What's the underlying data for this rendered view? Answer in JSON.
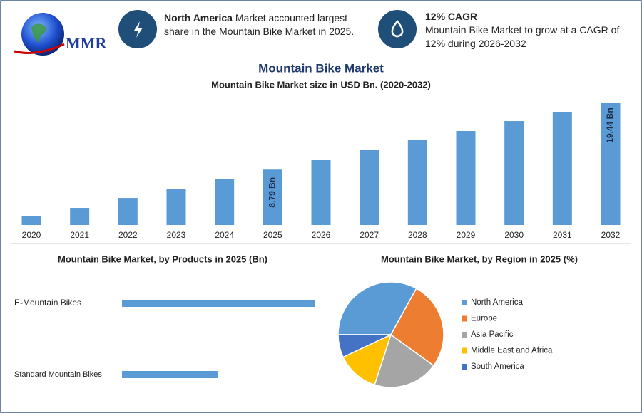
{
  "header": {
    "logo": "MMR",
    "info": [
      {
        "bold": "North America",
        "text": " Market accounted largest share in the Mountain Bike Market in 2025."
      },
      {
        "bold": "12% CAGR",
        "text": "Mountain Bike Market to grow at a CAGR of 12% during 2026-2032"
      }
    ]
  },
  "chart_data": [
    {
      "type": "bar",
      "title": "Mountain Bike Market",
      "subtitle": "Mountain Bike Market size in USD Bn. (2020-2032)",
      "categories": [
        "2020",
        "2021",
        "2022",
        "2023",
        "2024",
        "2025",
        "2026",
        "2027",
        "2028",
        "2029",
        "2030",
        "2031",
        "2032"
      ],
      "values": [
        1.36,
        2.71,
        4.29,
        5.76,
        7.34,
        8.79,
        10.4,
        11.87,
        13.45,
        14.92,
        16.5,
        17.97,
        19.44
      ],
      "value_labels": [
        null,
        null,
        null,
        null,
        null,
        "8.79 Bn",
        null,
        null,
        null,
        null,
        null,
        null,
        "19.44 Bn"
      ],
      "color": "#5b9bd5"
    },
    {
      "type": "hbar",
      "title": "Mountain Bike Market, by Products in 2025 (Bn)",
      "categories": [
        "E-Mountain Bikes",
        "Standard Mountain Bikes"
      ],
      "values": [
        5.86,
        2.93
      ],
      "color": "#5b9bd5"
    },
    {
      "type": "pie",
      "title": "Mountain Bike Market, by Region in 2025 (%)",
      "categories": [
        "North America",
        "Europe",
        "Asia Pacific",
        "Middle East and Africa",
        "South America"
      ],
      "values": [
        33,
        27,
        20,
        13,
        7
      ],
      "colors": [
        "#5b9bd5",
        "#ed7d31",
        "#a5a5a5",
        "#ffc000",
        "#4472c4"
      ]
    }
  ]
}
